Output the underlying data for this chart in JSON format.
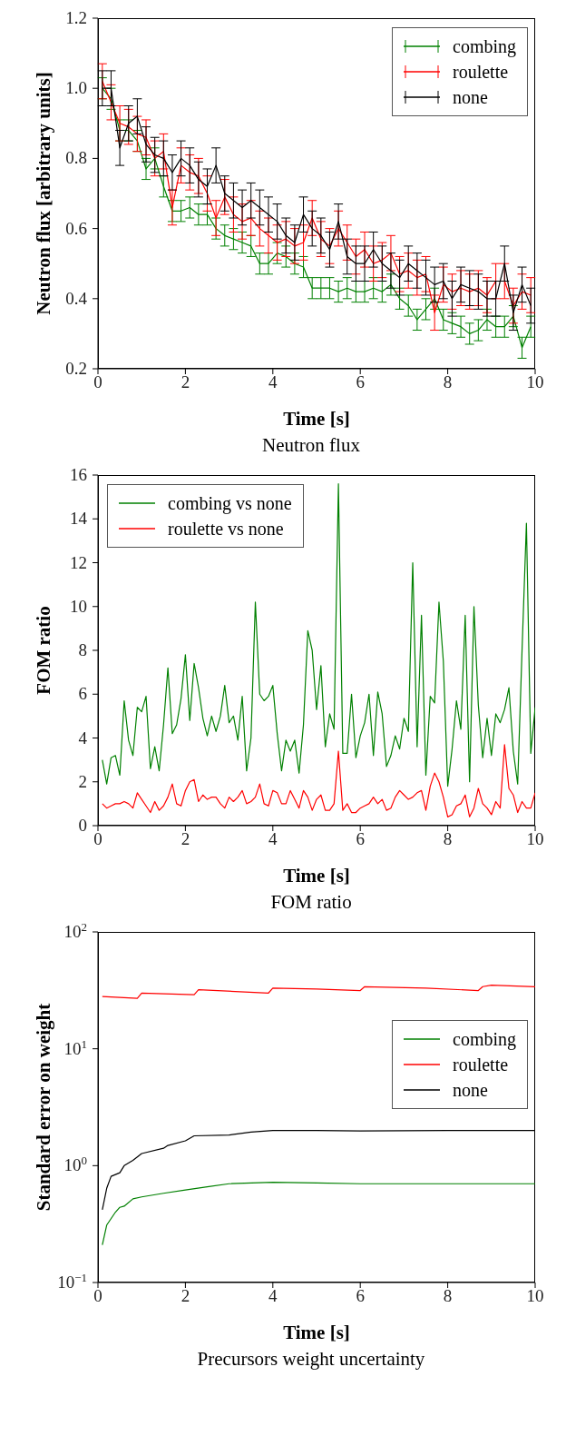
{
  "chart_data": [
    {
      "type": "line",
      "title": "Neutron flux",
      "xlabel": "Time [s]",
      "ylabel": "Neutron flux [arbitrary units]",
      "marker": "none",
      "legend": "top right",
      "grid": false,
      "xlim": [
        0,
        10
      ],
      "xticks": [
        0,
        2,
        4,
        6,
        8,
        10
      ],
      "ylim": [
        0.2,
        1.2
      ],
      "yticks": [
        {
          "value": 0.2,
          "label": "0.2"
        },
        {
          "value": 0.4,
          "label": "0.4"
        },
        {
          "value": 0.6,
          "label": "0.6"
        },
        {
          "value": 0.8,
          "label": "0.8"
        },
        {
          "value": 1,
          "label": "1.0"
        },
        {
          "value": 1.2,
          "label": "1.2"
        }
      ],
      "x": [
        0.1,
        0.3,
        0.5,
        0.7,
        0.9,
        1.1,
        1.3,
        1.5,
        1.7,
        1.9,
        2.1,
        2.3,
        2.5,
        2.7,
        2.9,
        3.1,
        3.3,
        3.5,
        3.7,
        3.9,
        4.1,
        4.3,
        4.5,
        4.7,
        4.9,
        5.1,
        5.3,
        5.5,
        5.7,
        5.9,
        6.1,
        6.3,
        6.5,
        6.7,
        6.9,
        7.1,
        7.3,
        7.5,
        7.7,
        7.9,
        8.1,
        8.3,
        8.5,
        8.7,
        8.9,
        9.1,
        9.3,
        9.5,
        9.7,
        9.9
      ],
      "series": [
        {
          "name": "combing",
          "color": "#008000",
          "values": [
            1.0,
            0.97,
            0.88,
            0.88,
            0.85,
            0.77,
            0.8,
            0.72,
            0.65,
            0.65,
            0.66,
            0.64,
            0.64,
            0.6,
            0.58,
            0.57,
            0.56,
            0.55,
            0.5,
            0.5,
            0.53,
            0.52,
            0.5,
            0.49,
            0.43,
            0.43,
            0.43,
            0.42,
            0.43,
            0.42,
            0.42,
            0.43,
            0.42,
            0.44,
            0.4,
            0.38,
            0.34,
            0.37,
            0.4,
            0.34,
            0.33,
            0.32,
            0.3,
            0.31,
            0.34,
            0.32,
            0.32,
            0.35,
            0.26,
            0.32
          ],
          "errors": [
            0.03,
            0.03,
            0.03,
            0.03,
            0.03,
            0.03,
            0.03,
            0.03,
            0.03,
            0.03,
            0.03,
            0.03,
            0.03,
            0.03,
            0.03,
            0.03,
            0.03,
            0.03,
            0.03,
            0.03,
            0.03,
            0.03,
            0.03,
            0.03,
            0.03,
            0.03,
            0.03,
            0.03,
            0.03,
            0.03,
            0.03,
            0.03,
            0.03,
            0.03,
            0.03,
            0.03,
            0.03,
            0.03,
            0.03,
            0.03,
            0.03,
            0.03,
            0.03,
            0.03,
            0.03,
            0.03,
            0.03,
            0.03,
            0.03,
            0.03
          ]
        },
        {
          "name": "roulette",
          "color": "#ff0000",
          "values": [
            1.02,
            0.96,
            0.9,
            0.89,
            0.87,
            0.86,
            0.8,
            0.82,
            0.66,
            0.78,
            0.76,
            0.75,
            0.7,
            0.63,
            0.69,
            0.64,
            0.62,
            0.63,
            0.6,
            0.58,
            0.56,
            0.57,
            0.55,
            0.56,
            0.63,
            0.57,
            0.55,
            0.6,
            0.56,
            0.52,
            0.54,
            0.5,
            0.51,
            0.53,
            0.47,
            0.48,
            0.46,
            0.47,
            0.36,
            0.44,
            0.42,
            0.43,
            0.42,
            0.43,
            0.41,
            0.45,
            0.45,
            0.38,
            0.42,
            0.41
          ],
          "errors": [
            0.05,
            0.05,
            0.05,
            0.05,
            0.05,
            0.05,
            0.05,
            0.05,
            0.05,
            0.05,
            0.05,
            0.05,
            0.05,
            0.05,
            0.05,
            0.05,
            0.05,
            0.05,
            0.05,
            0.05,
            0.05,
            0.05,
            0.05,
            0.05,
            0.05,
            0.05,
            0.05,
            0.05,
            0.05,
            0.05,
            0.05,
            0.05,
            0.05,
            0.05,
            0.05,
            0.05,
            0.05,
            0.05,
            0.05,
            0.05,
            0.05,
            0.05,
            0.05,
            0.05,
            0.05,
            0.05,
            0.05,
            0.05,
            0.05,
            0.05
          ]
        },
        {
          "name": "none",
          "color": "#000000",
          "values": [
            1.0,
            1.0,
            0.83,
            0.9,
            0.92,
            0.84,
            0.81,
            0.8,
            0.76,
            0.8,
            0.78,
            0.74,
            0.72,
            0.78,
            0.7,
            0.68,
            0.66,
            0.68,
            0.66,
            0.64,
            0.62,
            0.58,
            0.56,
            0.64,
            0.6,
            0.58,
            0.54,
            0.62,
            0.52,
            0.5,
            0.5,
            0.54,
            0.5,
            0.48,
            0.46,
            0.5,
            0.48,
            0.46,
            0.44,
            0.45,
            0.4,
            0.44,
            0.43,
            0.42,
            0.4,
            0.4,
            0.5,
            0.36,
            0.44,
            0.38
          ],
          "errors": [
            0.05,
            0.05,
            0.05,
            0.05,
            0.05,
            0.05,
            0.05,
            0.05,
            0.05,
            0.05,
            0.05,
            0.05,
            0.05,
            0.05,
            0.05,
            0.05,
            0.05,
            0.05,
            0.05,
            0.05,
            0.05,
            0.05,
            0.05,
            0.05,
            0.05,
            0.05,
            0.05,
            0.05,
            0.05,
            0.05,
            0.05,
            0.05,
            0.05,
            0.05,
            0.05,
            0.05,
            0.05,
            0.05,
            0.05,
            0.05,
            0.05,
            0.05,
            0.05,
            0.05,
            0.05,
            0.05,
            0.05,
            0.05,
            0.05,
            0.05
          ]
        }
      ]
    },
    {
      "type": "line",
      "title": "FOM ratio",
      "xlabel": "Time [s]",
      "ylabel": "FOM ratio",
      "marker": "none",
      "legend": "top left",
      "grid": false,
      "xlim": [
        0,
        10
      ],
      "xticks": [
        0,
        2,
        4,
        6,
        8,
        10
      ],
      "ylim": [
        0,
        16
      ],
      "yticks": [
        0,
        2,
        4,
        6,
        8,
        10,
        12,
        14,
        16
      ],
      "x": [
        0.1,
        0.2,
        0.3,
        0.4,
        0.5,
        0.6,
        0.7,
        0.8,
        0.9,
        1.0,
        1.1,
        1.2,
        1.3,
        1.4,
        1.5,
        1.6,
        1.7,
        1.8,
        1.9,
        2.0,
        2.1,
        2.2,
        2.3,
        2.4,
        2.5,
        2.6,
        2.7,
        2.8,
        2.9,
        3.0,
        3.1,
        3.2,
        3.3,
        3.4,
        3.5,
        3.6,
        3.7,
        3.8,
        3.9,
        4.0,
        4.1,
        4.2,
        4.3,
        4.4,
        4.5,
        4.6,
        4.7,
        4.8,
        4.9,
        5.0,
        5.1,
        5.2,
        5.3,
        5.4,
        5.5,
        5.6,
        5.7,
        5.8,
        5.9,
        6.0,
        6.1,
        6.2,
        6.3,
        6.4,
        6.5,
        6.6,
        6.7,
        6.8,
        6.9,
        7.0,
        7.1,
        7.2,
        7.3,
        7.4,
        7.5,
        7.6,
        7.7,
        7.8,
        7.9,
        8.0,
        8.1,
        8.2,
        8.3,
        8.4,
        8.5,
        8.6,
        8.7,
        8.8,
        8.9,
        9.0,
        9.1,
        9.2,
        9.3,
        9.4,
        9.5,
        9.6,
        9.7,
        9.8,
        9.9,
        10.0
      ],
      "series": [
        {
          "name": "combing vs none",
          "color": "#008000",
          "values": [
            3.0,
            1.9,
            3.1,
            3.2,
            2.3,
            5.7,
            3.9,
            3.2,
            5.4,
            5.2,
            5.9,
            2.6,
            3.6,
            2.5,
            4.6,
            7.2,
            4.2,
            4.6,
            5.8,
            7.8,
            4.8,
            7.4,
            6.3,
            4.9,
            4.1,
            5.0,
            4.3,
            5.0,
            6.4,
            4.7,
            5.0,
            3.9,
            5.9,
            2.5,
            4.0,
            10.2,
            6.0,
            5.7,
            5.9,
            6.4,
            4.2,
            2.5,
            3.9,
            3.4,
            3.9,
            2.4,
            4.6,
            8.9,
            8.0,
            5.3,
            7.3,
            3.6,
            5.1,
            4.4,
            15.6,
            3.3,
            3.3,
            6.0,
            3.1,
            4.1,
            4.7,
            6.0,
            3.2,
            6.1,
            5.1,
            2.7,
            3.2,
            4.1,
            3.5,
            4.9,
            4.3,
            12.0,
            3.6,
            9.6,
            2.3,
            5.9,
            5.6,
            10.2,
            7.5,
            1.8,
            3.5,
            5.7,
            4.4,
            9.6,
            2.0,
            10.0,
            5.5,
            3.1,
            4.9,
            3.2,
            5.1,
            4.7,
            5.3,
            6.3,
            3.4,
            1.9,
            8.0,
            13.8,
            3.3,
            5.4
          ]
        },
        {
          "name": "roulette vs none",
          "color": "#ff0000",
          "values": [
            1.0,
            0.8,
            0.9,
            1.0,
            1.0,
            1.1,
            1.0,
            0.8,
            1.5,
            1.2,
            0.9,
            0.6,
            1.1,
            0.7,
            0.9,
            1.3,
            1.9,
            1.0,
            0.9,
            1.6,
            2.0,
            2.1,
            1.1,
            1.4,
            1.2,
            1.3,
            1.3,
            1.0,
            0.8,
            1.3,
            1.1,
            1.3,
            1.6,
            1.0,
            1.1,
            1.3,
            1.9,
            1.0,
            0.9,
            1.6,
            1.5,
            1.0,
            1.0,
            1.6,
            1.2,
            0.8,
            1.6,
            1.3,
            0.7,
            1.2,
            1.4,
            0.7,
            0.7,
            1.0,
            3.4,
            0.7,
            1.0,
            0.6,
            0.6,
            0.8,
            0.9,
            1.0,
            1.3,
            1.0,
            1.2,
            0.7,
            0.8,
            1.3,
            1.6,
            1.4,
            1.2,
            1.3,
            1.5,
            1.6,
            0.7,
            1.8,
            2.4,
            2.0,
            1.3,
            0.4,
            0.5,
            0.9,
            1.0,
            1.4,
            0.4,
            0.8,
            1.7,
            1.0,
            0.8,
            0.5,
            1.1,
            0.8,
            3.7,
            1.7,
            1.4,
            0.6,
            1.1,
            0.8,
            0.8,
            1.5
          ]
        }
      ]
    },
    {
      "type": "line",
      "title": "Precursors weight uncertainty",
      "xlabel": "Time [s]",
      "ylabel": "Standard error on weight",
      "marker": "none",
      "legend": "right",
      "grid": false,
      "log": "y",
      "xlim": [
        0,
        10
      ],
      "xticks": [
        0,
        2,
        4,
        6,
        8,
        10
      ],
      "ylim": [
        0.1,
        100
      ],
      "yticks": [
        {
          "value": 0.1,
          "label": "10$^{−1}$"
        },
        {
          "value": 1,
          "label": "10$^{0}$"
        },
        {
          "value": 10,
          "label": "10$^{1}$"
        },
        {
          "value": 100,
          "label": "10$^{2}$"
        }
      ],
      "series": [
        {
          "name": "combing",
          "color": "#008000",
          "x": [
            0.1,
            0.2,
            0.4,
            0.5,
            0.6,
            0.8,
            1.0,
            1.5,
            2.0,
            2.5,
            3.0,
            4.0,
            5.0,
            6.0,
            8.0,
            10.0
          ],
          "values": [
            0.21,
            0.31,
            0.4,
            0.44,
            0.45,
            0.52,
            0.54,
            0.58,
            0.62,
            0.66,
            0.7,
            0.72,
            0.71,
            0.7,
            0.7,
            0.7
          ]
        },
        {
          "name": "roulette",
          "color": "#ff0000",
          "x": [
            0.1,
            0.9,
            1.0,
            2.2,
            2.3,
            3.9,
            4.0,
            5.0,
            6.0,
            6.1,
            7.5,
            8.7,
            8.8,
            9.0,
            10.0
          ],
          "values": [
            28,
            27,
            30,
            29,
            32,
            30,
            33,
            32.5,
            31.5,
            34,
            33,
            31.5,
            34,
            35,
            34
          ]
        },
        {
          "name": "none",
          "color": "#000000",
          "x": [
            0.1,
            0.2,
            0.3,
            0.5,
            0.6,
            0.8,
            1.0,
            1.5,
            1.6,
            2.0,
            2.2,
            3.0,
            3.5,
            4.0,
            5.0,
            6.0,
            8.0,
            10.0
          ],
          "values": [
            0.42,
            0.64,
            0.81,
            0.87,
            1.0,
            1.11,
            1.27,
            1.41,
            1.49,
            1.63,
            1.8,
            1.83,
            1.94,
            2.0,
            2.0,
            1.98,
            2.0,
            2.0
          ]
        }
      ]
    }
  ]
}
